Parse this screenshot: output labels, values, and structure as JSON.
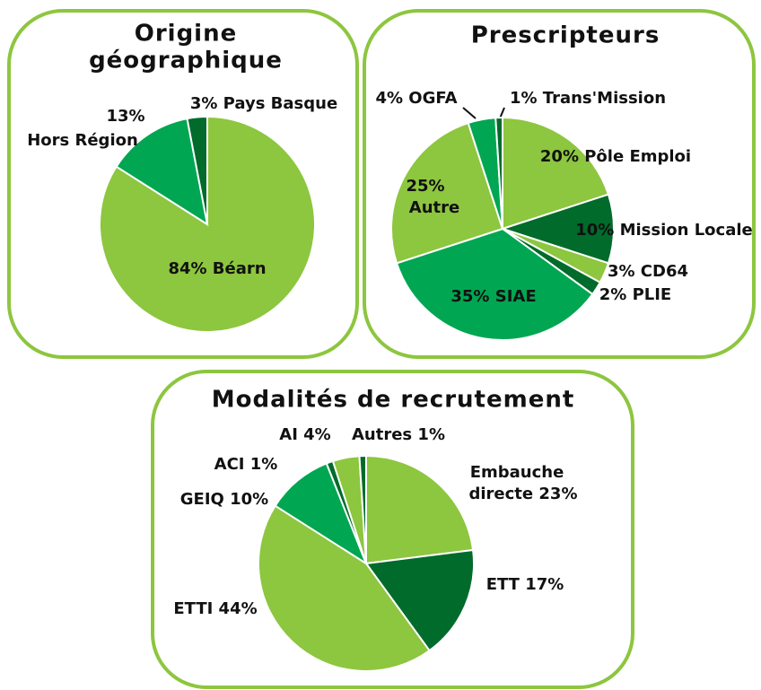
{
  "chart_data": [
    {
      "type": "pie",
      "title": [
        "Origine",
        "géographique"
      ],
      "values": [
        84,
        13,
        3
      ],
      "value_labels": [
        [
          "84% Béarn"
        ],
        [
          "13%",
          "Hors Région"
        ],
        [
          "3% Pays Basque"
        ]
      ],
      "colors": [
        "#8dc63f",
        "#00a651",
        "#006b2b"
      ]
    },
    {
      "type": "pie",
      "title": [
        "Prescripteurs"
      ],
      "values": [
        20,
        10,
        3,
        2,
        35,
        25,
        4,
        1
      ],
      "value_labels": [
        [
          "20% Pôle Emploi"
        ],
        [
          "10% Mission Locale"
        ],
        [
          "3% CD64"
        ],
        [
          "2% PLIE"
        ],
        [
          "35% SIAE"
        ],
        [
          "25%",
          "Autre"
        ],
        [
          "4% OGFA"
        ],
        [
          "1% Trans'Mission"
        ]
      ],
      "colors": [
        "#8dc63f",
        "#006b2b",
        "#8dc63f",
        "#006b2b",
        "#00a651",
        "#8dc63f",
        "#00a651",
        "#006b2b"
      ]
    },
    {
      "type": "pie",
      "title": [
        "Modalités de recrutement"
      ],
      "values": [
        23,
        17,
        44,
        10,
        1,
        4,
        1
      ],
      "value_labels": [
        [
          "Embauche",
          "directe 23%"
        ],
        [
          "ETT 17%"
        ],
        [
          "ETTI 44%"
        ],
        [
          "GEIQ 10%"
        ],
        [
          "ACI 1%"
        ],
        [
          "AI 4%"
        ],
        [
          "Autres 1%"
        ]
      ],
      "colors": [
        "#8dc63f",
        "#006b2b",
        "#8dc63f",
        "#00a651",
        "#006b2b",
        "#8dc63f",
        "#006b2b"
      ]
    }
  ]
}
